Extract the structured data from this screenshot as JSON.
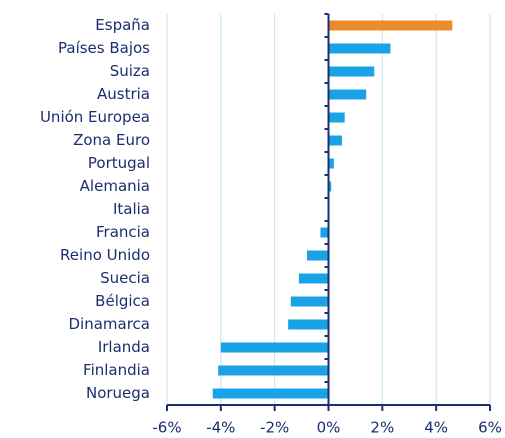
{
  "chart_data": {
    "type": "bar",
    "orientation": "horizontal",
    "categories": [
      "España",
      "Países Bajos",
      "Suiza",
      "Austria",
      "Unión Europea",
      "Zona Euro",
      "Portugal",
      "Alemania",
      "Italia",
      "Francia",
      "Reino Unido",
      "Suecia",
      "Bélgica",
      "Dinamarca",
      "Irlanda",
      "Finlandia",
      "Noruega"
    ],
    "values": [
      4.6,
      2.3,
      1.7,
      1.4,
      0.6,
      0.5,
      0.2,
      0.1,
      0.0,
      -0.3,
      -0.8,
      -1.1,
      -1.4,
      -1.5,
      -4.0,
      -4.1,
      -4.3
    ],
    "colors": [
      "#ec8a2e",
      "#19a2e6",
      "#19a2e6",
      "#19a2e6",
      "#19a2e6",
      "#19a2e6",
      "#19a2e6",
      "#19a2e6",
      "#19a2e6",
      "#19a2e6",
      "#19a2e6",
      "#19a2e6",
      "#19a2e6",
      "#19a2e6",
      "#19a2e6",
      "#19a2e6",
      "#19a2e6"
    ],
    "xlim": [
      -6,
      6
    ],
    "xticks": [
      {
        "value": -6,
        "label": "-6%"
      },
      {
        "value": -4,
        "label": "-4%"
      },
      {
        "value": -2,
        "label": "-2%"
      },
      {
        "value": 0,
        "label": "0%"
      },
      {
        "value": 2,
        "label": "2%"
      },
      {
        "value": 4,
        "label": "4%"
      },
      {
        "value": 6,
        "label": "6%"
      }
    ],
    "grid": true
  }
}
